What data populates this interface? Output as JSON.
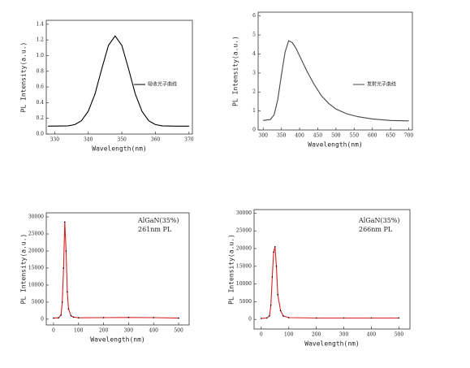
{
  "chart_data": [
    {
      "type": "line",
      "xlabel": "Wavelength(nm)",
      "ylabel": "PL Intensity(a.u.)",
      "xlim": [
        327.5,
        371
      ],
      "xticks": [
        330,
        340,
        350,
        360,
        370
      ],
      "ylim": [
        0,
        1.45
      ],
      "yticks": [
        {
          "value": 0,
          "label": "0.0"
        },
        {
          "value": 0.2,
          "label": "0.2"
        },
        {
          "value": 0.4,
          "label": "0.4"
        },
        {
          "value": 0.6,
          "label": "0.6"
        },
        {
          "value": 0.8,
          "label": "0.8"
        },
        {
          "value": 1.0,
          "label": "1.0"
        },
        {
          "value": 1.2,
          "label": "1.2"
        },
        {
          "value": 1.4,
          "label": "1.4"
        }
      ],
      "series": [
        {
          "name": "吸收光子曲线",
          "color": "#000000",
          "x": [
            328,
            334,
            336,
            338,
            340,
            342,
            344,
            346,
            348,
            350,
            352,
            354,
            356,
            358,
            360,
            362,
            366,
            370
          ],
          "values": [
            0.1,
            0.105,
            0.12,
            0.17,
            0.29,
            0.51,
            0.83,
            1.13,
            1.25,
            1.13,
            0.83,
            0.51,
            0.29,
            0.17,
            0.12,
            0.105,
            0.1,
            0.1
          ]
        }
      ]
    },
    {
      "type": "line",
      "xlabel": "Wavelength(nm)",
      "ylabel": "PL Intensity(a.u.)",
      "xlim": [
        286,
        710
      ],
      "xticks": [
        300,
        350,
        400,
        450,
        500,
        550,
        600,
        650,
        700
      ],
      "ylim": [
        0,
        6.2
      ],
      "yticks": [
        0,
        1,
        2,
        3,
        4,
        5,
        6
      ],
      "series": [
        {
          "name": "发射光子曲线",
          "color": "#444444",
          "x": [
            300,
            320,
            330,
            340,
            350,
            360,
            370,
            380,
            390,
            400,
            420,
            440,
            460,
            480,
            500,
            530,
            560,
            600,
            650,
            700
          ],
          "values": [
            0.5,
            0.55,
            0.8,
            1.6,
            2.9,
            4.1,
            4.7,
            4.6,
            4.3,
            3.9,
            3.1,
            2.4,
            1.8,
            1.4,
            1.1,
            0.85,
            0.7,
            0.58,
            0.5,
            0.48
          ]
        }
      ]
    },
    {
      "type": "line",
      "xlabel": "Wavelength(nm)",
      "ylabel": "PL Intensity(a.u.)",
      "annotations": [
        "AlGaN(35%)",
        "261nm PL"
      ],
      "xlim": [
        -29,
        542
      ],
      "xticks": [
        0,
        100,
        200,
        300,
        400,
        500
      ],
      "ylim": [
        -1700,
        31200
      ],
      "yticks": [
        0,
        5000,
        10000,
        15000,
        20000,
        25000,
        30000
      ],
      "series": [
        {
          "color": "#d62020",
          "x": [
            0,
            20,
            30,
            35,
            40,
            45,
            50,
            55,
            60,
            70,
            80,
            100,
            200,
            300,
            400,
            500
          ],
          "values": [
            300,
            400,
            1200,
            5000,
            15000,
            28500,
            20000,
            8000,
            3000,
            1000,
            600,
            400,
            450,
            500,
            450,
            300
          ]
        }
      ]
    },
    {
      "type": "line",
      "xlabel": "Wavelength(nm)",
      "ylabel": "PL Intensity(a.u.)",
      "annotations": [
        "AlGaN(35%)",
        "266nm PL"
      ],
      "xlim": [
        -26,
        540
      ],
      "xticks": [
        0,
        100,
        200,
        300,
        400,
        500
      ],
      "ylim": [
        -2700,
        31000
      ],
      "yticks": [
        0,
        5000,
        10000,
        15000,
        20000,
        25000,
        30000
      ],
      "series": [
        {
          "color": "#d62020",
          "x": [
            0,
            20,
            30,
            35,
            40,
            45,
            50,
            55,
            60,
            70,
            80,
            100,
            200,
            300,
            400,
            500
          ],
          "values": [
            300,
            400,
            1000,
            4000,
            12000,
            19000,
            20500,
            15000,
            7000,
            2500,
            1000,
            500,
            400,
            400,
            400,
            400
          ]
        }
      ]
    }
  ]
}
